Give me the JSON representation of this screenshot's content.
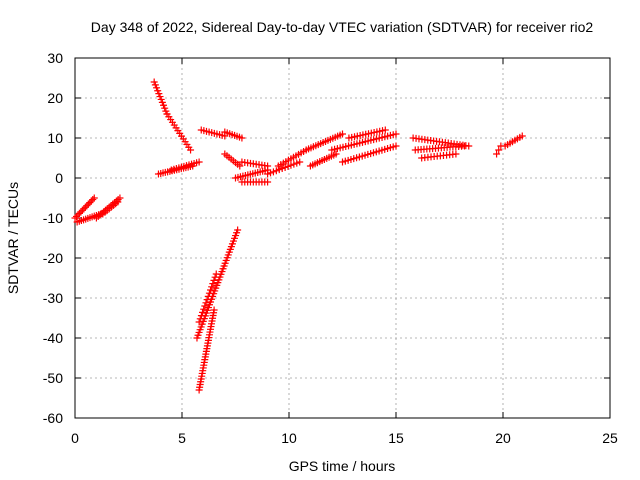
{
  "chart_data": {
    "type": "scatter",
    "title": "Day 348 of 2022, Sidereal Day-to-day VTEC variation (SDTVAR) for receiver rio2",
    "xlabel": "GPS time / hours",
    "ylabel": "SDTVAR / TECUs",
    "xlim": [
      0,
      25
    ],
    "ylim": [
      -60,
      30
    ],
    "xticks": [
      0,
      5,
      10,
      15,
      20,
      25
    ],
    "yticks": [
      -60,
      -50,
      -40,
      -30,
      -20,
      -10,
      0,
      10,
      20,
      30
    ],
    "grid": true,
    "marker": "+",
    "color": "#ff0000",
    "segments": [
      {
        "x0": 0.0,
        "x1": 0.9,
        "y0": -10.0,
        "y1": -5.0,
        "n": 14
      },
      {
        "x0": 0.1,
        "x1": 1.2,
        "y0": -11.0,
        "y1": -9.0,
        "n": 12
      },
      {
        "x0": 1.0,
        "x1": 2.1,
        "y0": -10.0,
        "y1": -5.0,
        "n": 14
      },
      {
        "x0": 1.3,
        "x1": 2.0,
        "y0": -9.0,
        "y1": -6.0,
        "n": 8
      },
      {
        "x0": 3.7,
        "x1": 4.3,
        "y0": 24.0,
        "y1": 16.0,
        "n": 12
      },
      {
        "x0": 4.3,
        "x1": 5.4,
        "y0": 16.0,
        "y1": 7.0,
        "n": 14
      },
      {
        "x0": 3.9,
        "x1": 5.5,
        "y0": 1.0,
        "y1": 3.0,
        "n": 16
      },
      {
        "x0": 4.5,
        "x1": 5.8,
        "y0": 2.0,
        "y1": 4.0,
        "n": 12
      },
      {
        "x0": 5.7,
        "x1": 7.6,
        "y0": -40.0,
        "y1": -13.0,
        "n": 40
      },
      {
        "x0": 5.8,
        "x1": 6.6,
        "y0": -36.0,
        "y1": -24.0,
        "n": 16
      },
      {
        "x0": 5.8,
        "x1": 6.5,
        "y0": -53.0,
        "y1": -33.0,
        "n": 30
      },
      {
        "x0": 5.9,
        "x1": 7.0,
        "y0": 12.0,
        "y1": 10.5,
        "n": 10
      },
      {
        "x0": 7.0,
        "x1": 7.8,
        "y0": 11.5,
        "y1": 10.0,
        "n": 8
      },
      {
        "x0": 7.0,
        "x1": 7.7,
        "y0": 6.0,
        "y1": 3.0,
        "n": 8
      },
      {
        "x0": 7.5,
        "x1": 9.0,
        "y0": 0.0,
        "y1": 2.0,
        "n": 14
      },
      {
        "x0": 7.8,
        "x1": 9.0,
        "y0": 4.0,
        "y1": 3.0,
        "n": 10
      },
      {
        "x0": 7.8,
        "x1": 9.0,
        "y0": -1.0,
        "y1": -1.0,
        "n": 10
      },
      {
        "x0": 9.0,
        "x1": 10.5,
        "y0": 1.0,
        "y1": 4.0,
        "n": 12
      },
      {
        "x0": 9.5,
        "x1": 10.8,
        "y0": 3.0,
        "y1": 7.0,
        "n": 12
      },
      {
        "x0": 10.8,
        "x1": 12.5,
        "y0": 7.0,
        "y1": 11.0,
        "n": 16
      },
      {
        "x0": 11.0,
        "x1": 12.2,
        "y0": 3.0,
        "y1": 6.0,
        "n": 12
      },
      {
        "x0": 12.0,
        "x1": 15.0,
        "y0": 7.0,
        "y1": 11.0,
        "n": 24
      },
      {
        "x0": 12.5,
        "x1": 15.0,
        "y0": 4.0,
        "y1": 8.0,
        "n": 20
      },
      {
        "x0": 12.8,
        "x1": 14.5,
        "y0": 10.0,
        "y1": 12.0,
        "n": 14
      },
      {
        "x0": 15.8,
        "x1": 18.4,
        "y0": 10.0,
        "y1": 8.0,
        "n": 20
      },
      {
        "x0": 15.9,
        "x1": 18.2,
        "y0": 7.0,
        "y1": 8.0,
        "n": 18
      },
      {
        "x0": 16.2,
        "x1": 17.8,
        "y0": 5.0,
        "y1": 6.0,
        "n": 12
      },
      {
        "x0": 19.7,
        "x1": 19.9,
        "y0": 6.0,
        "y1": 8.0,
        "n": 3
      },
      {
        "x0": 20.1,
        "x1": 20.9,
        "y0": 8.0,
        "y1": 10.5,
        "n": 8
      }
    ]
  }
}
